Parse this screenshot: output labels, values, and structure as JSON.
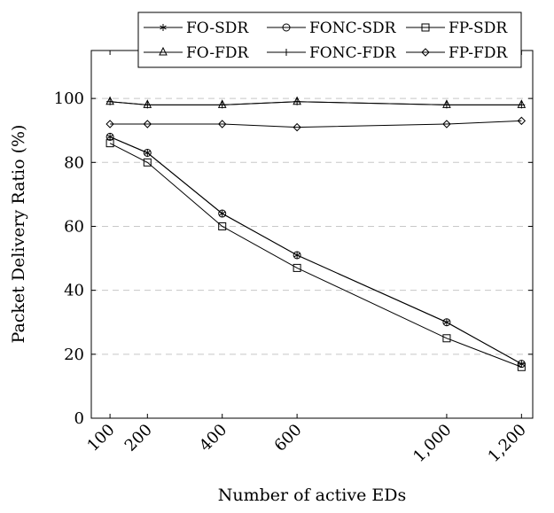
{
  "chart_data": {
    "type": "line",
    "title": "",
    "xlabel": "Number of active EDs",
    "ylabel": "Packet Delivery Ratio (%)",
    "xlim": [
      50,
      1230
    ],
    "ylim": [
      0,
      115
    ],
    "x_ticks": [
      100,
      200,
      400,
      600,
      1000,
      1200
    ],
    "x_tick_labels": [
      "100",
      "200",
      "400",
      "600",
      "1,000",
      "1,200"
    ],
    "y_ticks": [
      0,
      20,
      40,
      60,
      80,
      100
    ],
    "y_tick_labels": [
      "0",
      "20",
      "40",
      "60",
      "80",
      "100"
    ],
    "grid": "horizontal-dashed",
    "legend_position": "top-right",
    "x": [
      100,
      200,
      400,
      600,
      1000,
      1200
    ],
    "series": [
      {
        "name": "FO-SDR",
        "marker": "asterisk",
        "values": [
          88,
          83,
          64,
          51,
          30,
          17
        ]
      },
      {
        "name": "FONC-SDR",
        "marker": "circle",
        "values": [
          88,
          83,
          64,
          51,
          30,
          17
        ]
      },
      {
        "name": "FP-SDR",
        "marker": "square",
        "values": [
          86,
          80,
          60,
          47,
          25,
          16
        ]
      },
      {
        "name": "FO-FDR",
        "marker": "triangle",
        "values": [
          99,
          98,
          98,
          99,
          98,
          98
        ]
      },
      {
        "name": "FONC-FDR",
        "marker": "plus",
        "values": [
          99,
          98,
          98,
          99,
          98,
          98
        ]
      },
      {
        "name": "FP-FDR",
        "marker": "diamond",
        "values": [
          92,
          92,
          92,
          91,
          92,
          93
        ]
      }
    ]
  }
}
